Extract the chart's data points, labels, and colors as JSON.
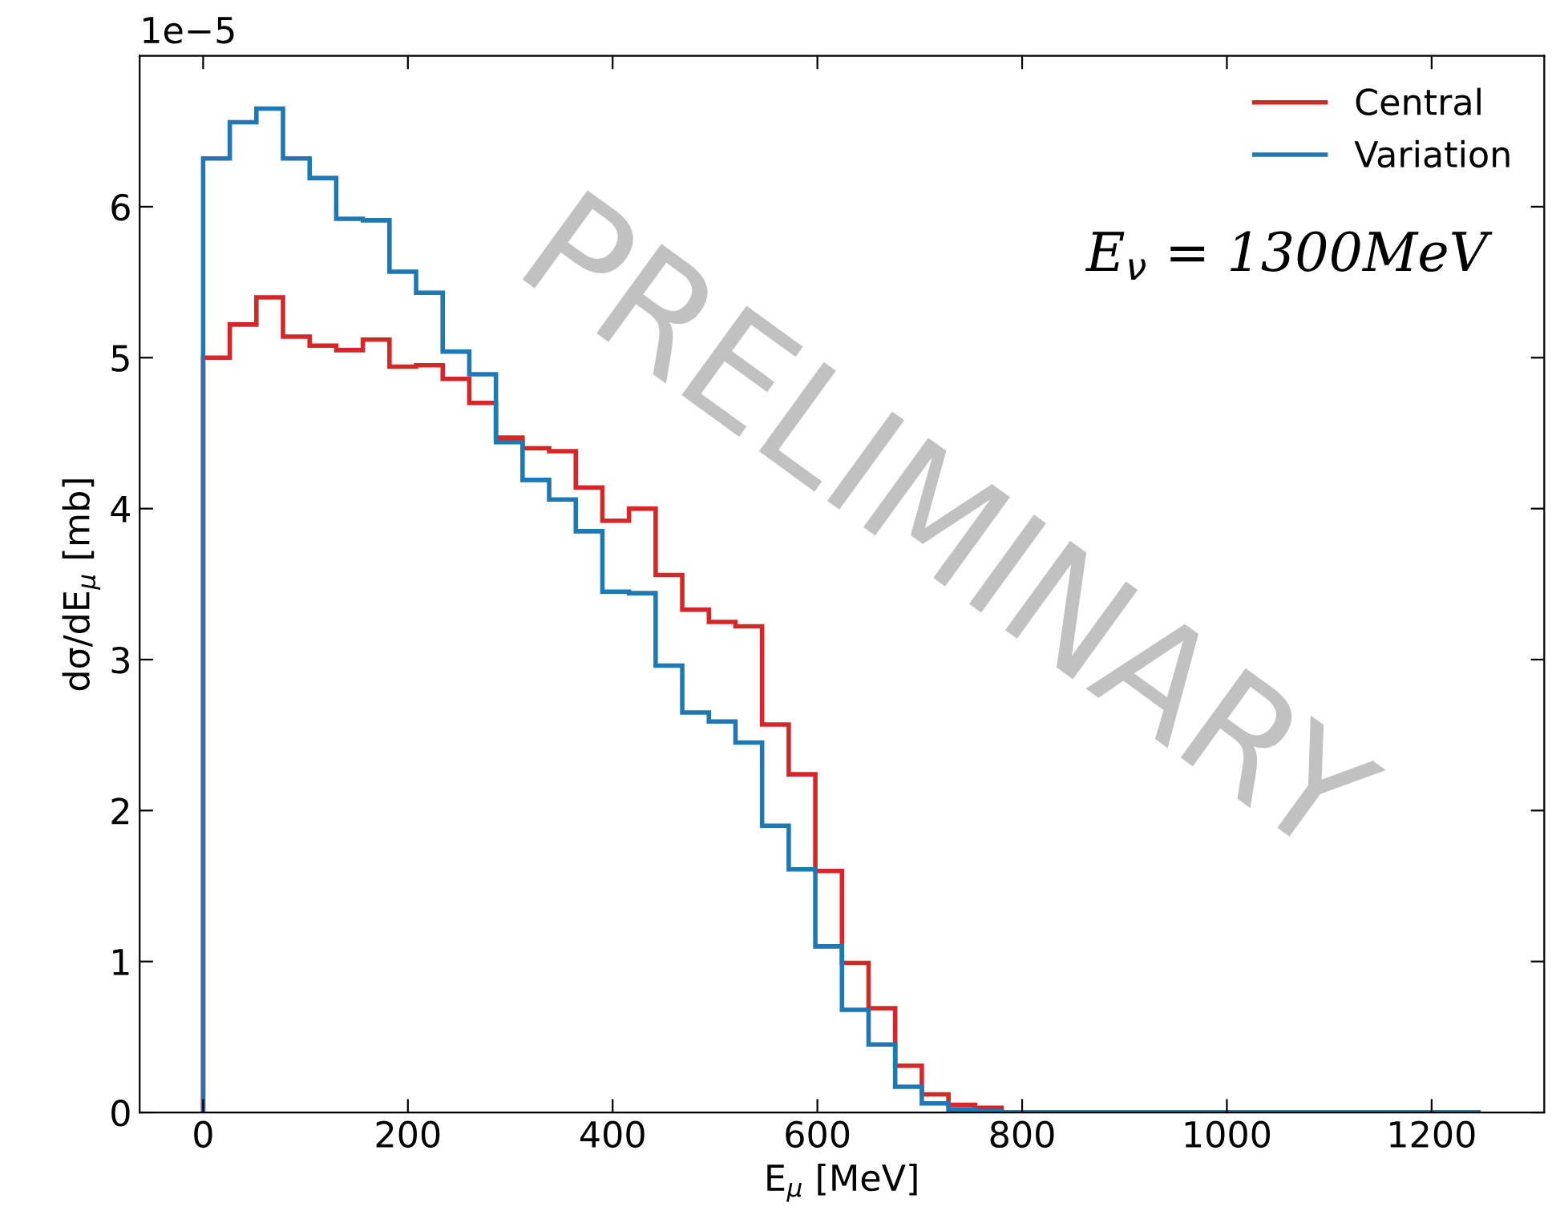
{
  "chart_data": {
    "type": "histogram",
    "xlabel": "E$_{μ}$ [MeV]",
    "ylabel": "dσ/dE$_{μ}$ [mb]",
    "bins": [
      0,
      26,
      52,
      78,
      104,
      130,
      156,
      182,
      208,
      234,
      260,
      286,
      312,
      338,
      364,
      390,
      416,
      442,
      468,
      494,
      520,
      546,
      572,
      598,
      624,
      650,
      676,
      702,
      728,
      754,
      780,
      806,
      832,
      858,
      884,
      910,
      936,
      962,
      988,
      1014,
      1040,
      1066,
      1092,
      1118,
      1144,
      1170,
      1196,
      1222,
      1248
    ],
    "series": [
      {
        "name": "Central",
        "color": "#d62728",
        "values": [
          5.0,
          5.22,
          5.4,
          5.14,
          5.08,
          5.05,
          5.12,
          4.94,
          4.95,
          4.86,
          4.7,
          4.47,
          4.4,
          4.38,
          4.14,
          3.92,
          4.0,
          3.56,
          3.33,
          3.25,
          3.22,
          2.57,
          2.24,
          1.6,
          0.99,
          0.69,
          0.31,
          0.12,
          0.05,
          0.03,
          0,
          0,
          0,
          0,
          0,
          0,
          0,
          0,
          0,
          0,
          0,
          0,
          0,
          0,
          0,
          0,
          0,
          0
        ]
      },
      {
        "name": "Variation",
        "color": "#1f77b4",
        "values": [
          6.32,
          6.56,
          6.65,
          6.32,
          6.19,
          5.92,
          5.91,
          5.57,
          5.43,
          5.04,
          4.89,
          4.44,
          4.19,
          4.06,
          3.85,
          3.45,
          3.44,
          2.96,
          2.65,
          2.59,
          2.45,
          1.9,
          1.61,
          1.1,
          0.68,
          0.45,
          0.17,
          0.06,
          0.02,
          0.01,
          0,
          0,
          0,
          0,
          0,
          0,
          0,
          0,
          0,
          0,
          0,
          0,
          0,
          0,
          0,
          0,
          0,
          0
        ]
      }
    ],
    "xlim": [
      -62,
      1310
    ],
    "xticks": [
      0,
      200,
      400,
      600,
      800,
      1000,
      1200
    ],
    "ylim": [
      0,
      7
    ],
    "yticks": [
      0,
      1,
      2,
      3,
      4,
      5,
      6
    ],
    "legend": "top right",
    "grid": false,
    "annotations": [
      "1e−5",
      "E$_{ν}$ = 1300MeV",
      "PRELIMINARY"
    ]
  }
}
